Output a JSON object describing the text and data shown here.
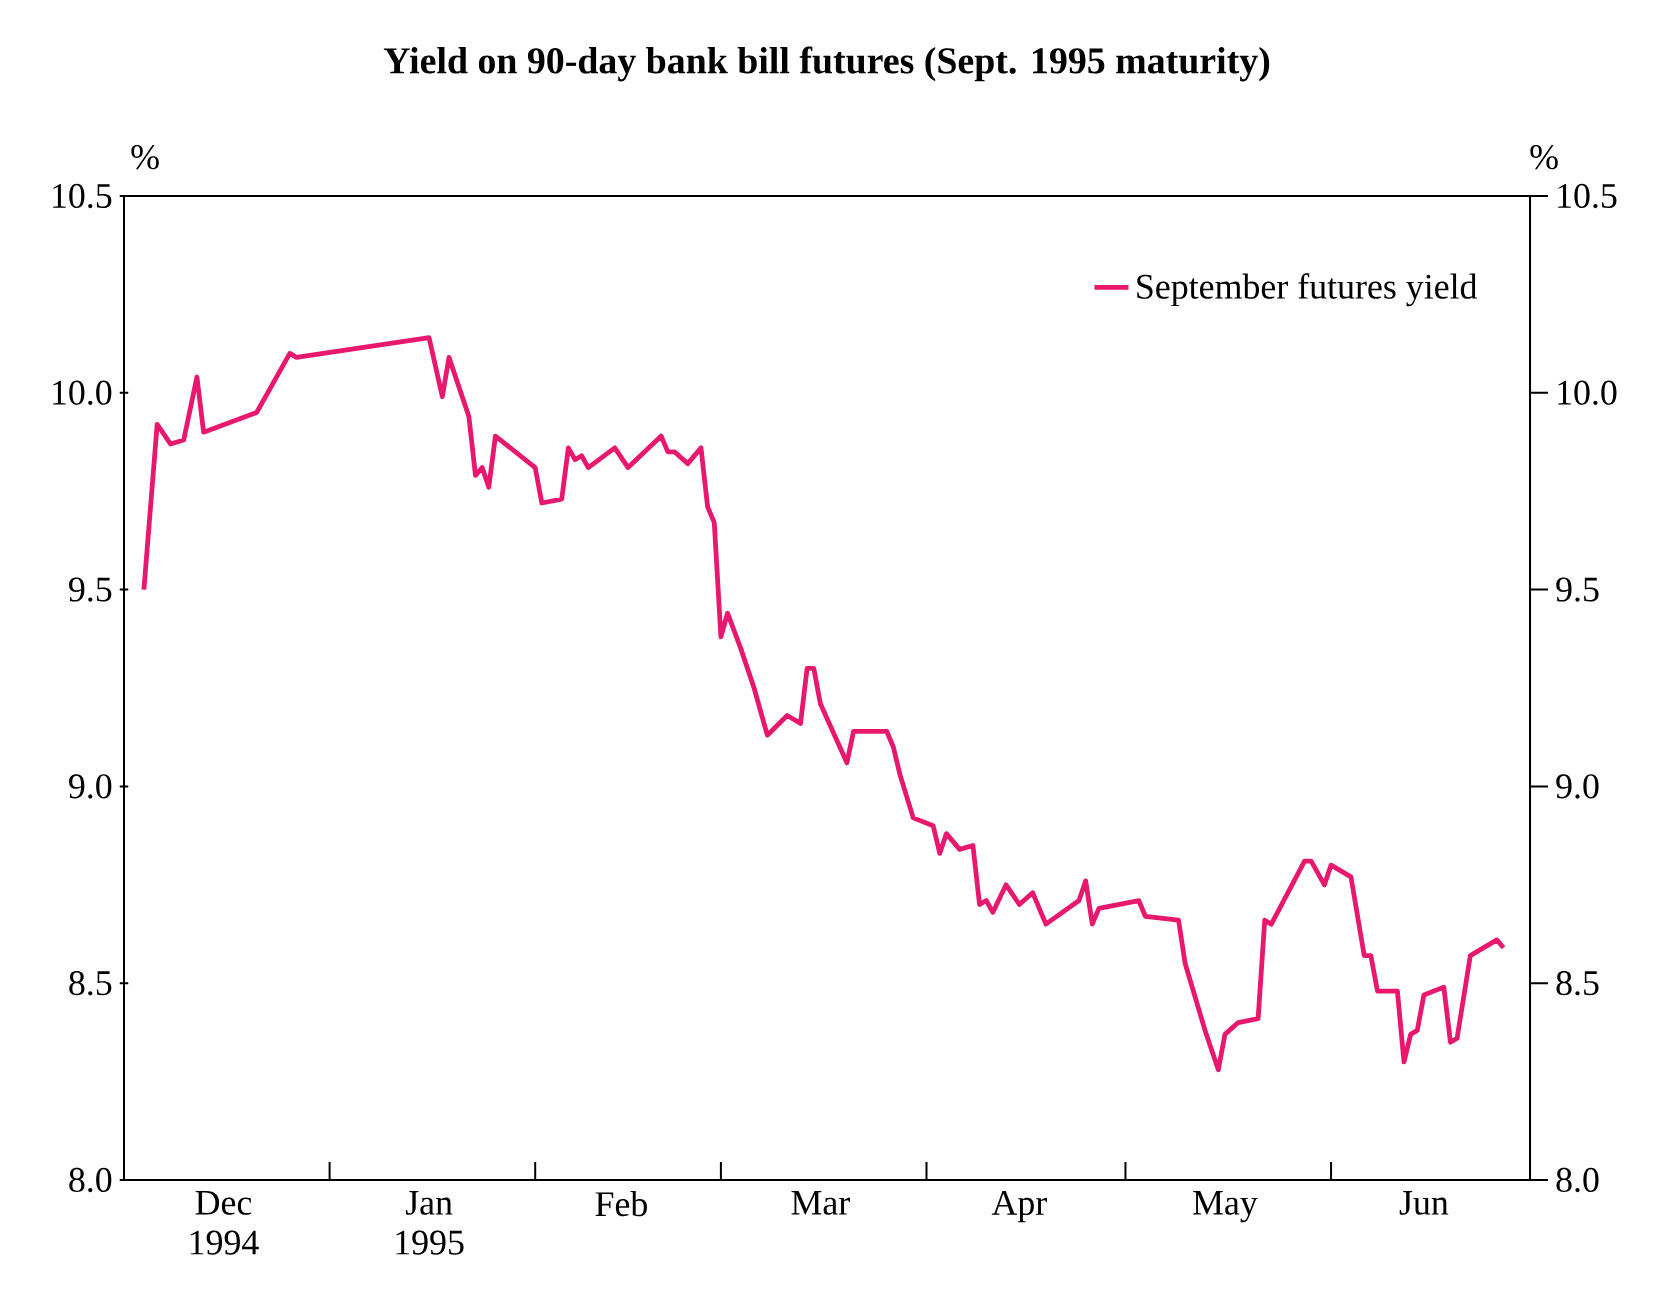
{
  "chart_data": {
    "type": "line",
    "title": "Yield on 90-day bank bill futures (Sept. 1995 maturity)",
    "ylabel": "%",
    "y2label": "%",
    "x": [
      "1994-12-04",
      "1994-12-06",
      "1994-12-08",
      "1994-12-10",
      "1994-12-12",
      "1994-12-13",
      "1994-12-21",
      "1994-12-26",
      "1994-12-27",
      "1995-01-16",
      "1995-01-18",
      "1995-01-19",
      "1995-01-22",
      "1995-01-23",
      "1995-01-24",
      "1995-01-25",
      "1995-01-26",
      "1995-02-01",
      "1995-02-02",
      "1995-02-05",
      "1995-02-06",
      "1995-02-07",
      "1995-02-08",
      "1995-02-09",
      "1995-02-13",
      "1995-02-15",
      "1995-02-20",
      "1995-02-21",
      "1995-02-22",
      "1995-02-24",
      "1995-02-26",
      "1995-02-27",
      "1995-02-28",
      "1995-03-01",
      "1995-03-02",
      "1995-03-04",
      "1995-03-06",
      "1995-03-08",
      "1995-03-11",
      "1995-03-13",
      "1995-03-14",
      "1995-03-15",
      "1995-03-16",
      "1995-03-20",
      "1995-03-21",
      "1995-03-26",
      "1995-03-27",
      "1995-03-28",
      "1995-03-30",
      "1995-04-02",
      "1995-04-03",
      "1995-04-04",
      "1995-04-06",
      "1995-04-08",
      "1995-04-09",
      "1995-04-10",
      "1995-04-11",
      "1995-04-13",
      "1995-04-15",
      "1995-04-17",
      "1995-04-19",
      "1995-04-24",
      "1995-04-25",
      "1995-04-26",
      "1995-04-27",
      "1995-05-03",
      "1995-05-04",
      "1995-05-09",
      "1995-05-10",
      "1995-05-13",
      "1995-05-15",
      "1995-05-16",
      "1995-05-18",
      "1995-05-21",
      "1995-05-22",
      "1995-05-23",
      "1995-05-28",
      "1995-05-29",
      "1995-05-31",
      "1995-06-01",
      "1995-06-04",
      "1995-06-06",
      "1995-06-07",
      "1995-06-08",
      "1995-06-11",
      "1995-06-12",
      "1995-06-13",
      "1995-06-14",
      "1995-06-15",
      "1995-06-18",
      "1995-06-19",
      "1995-06-20",
      "1995-06-22",
      "1995-06-26",
      "1995-06-27"
    ],
    "series": [
      {
        "name": "September futures yield",
        "color": "#e8186f",
        "values": [
          9.5,
          9.92,
          9.87,
          9.88,
          10.04,
          9.9,
          9.95,
          10.1,
          10.09,
          10.14,
          9.99,
          10.09,
          9.94,
          9.79,
          9.81,
          9.76,
          9.89,
          9.81,
          9.72,
          9.73,
          9.86,
          9.83,
          9.84,
          9.81,
          9.86,
          9.81,
          9.89,
          9.85,
          9.85,
          9.82,
          9.86,
          9.71,
          9.67,
          9.38,
          9.44,
          9.35,
          9.25,
          9.13,
          9.18,
          9.16,
          9.3,
          9.3,
          9.21,
          9.06,
          9.14,
          9.14,
          9.1,
          9.03,
          8.92,
          8.9,
          8.83,
          8.88,
          8.84,
          8.85,
          8.7,
          8.71,
          8.68,
          8.75,
          8.7,
          8.73,
          8.65,
          8.71,
          8.76,
          8.65,
          8.69,
          8.71,
          8.67,
          8.66,
          8.55,
          8.38,
          8.28,
          8.37,
          8.4,
          8.41,
          8.66,
          8.65,
          8.81,
          8.81,
          8.75,
          8.8,
          8.77,
          8.57,
          8.57,
          8.48,
          8.48,
          8.3,
          8.37,
          8.38,
          8.47,
          8.49,
          8.35,
          8.36,
          8.57,
          8.61,
          8.59
        ]
      }
    ],
    "xlim": [
      "1994-12-01",
      "1995-07-01"
    ],
    "xticks": [
      {
        "value": "1994-12-01",
        "label": null
      },
      {
        "value": "1994-12-16",
        "label": "Dec 1994"
      },
      {
        "value": "1995-01-01",
        "label": null
      },
      {
        "value": "1995-01-16",
        "label": "Jan 1995"
      },
      {
        "value": "1995-02-01",
        "label": null
      },
      {
        "value": "1995-02-14",
        "label": "Feb"
      },
      {
        "value": "1995-03-01",
        "label": null
      },
      {
        "value": "1995-03-16",
        "label": "Mar"
      },
      {
        "value": "1995-04-01",
        "label": null
      },
      {
        "value": "1995-04-15",
        "label": "Apr"
      },
      {
        "value": "1995-05-01",
        "label": null
      },
      {
        "value": "1995-05-16",
        "label": "May"
      },
      {
        "value": "1995-06-01",
        "label": null
      },
      {
        "value": "1995-06-15",
        "label": "Jun"
      }
    ],
    "ylim": [
      8.0,
      10.5
    ],
    "yticks": [
      {
        "value": 8.0,
        "label": "8.0"
      },
      {
        "value": 8.5,
        "label": "8.5"
      },
      {
        "value": 9.0,
        "label": "9.0"
      },
      {
        "value": 9.5,
        "label": "9.5"
      },
      {
        "value": 10.0,
        "label": "10.0"
      },
      {
        "value": 10.5,
        "label": "10.5"
      }
    ],
    "y2lim": [
      8.0,
      10.5
    ],
    "y2ticks": [
      {
        "value": 8.0,
        "label": "8.0"
      },
      {
        "value": 8.5,
        "label": "8.5"
      },
      {
        "value": 9.0,
        "label": "9.0"
      },
      {
        "value": 9.5,
        "label": "9.5"
      },
      {
        "value": 10.0,
        "label": "10.0"
      },
      {
        "value": 10.5,
        "label": "10.5"
      }
    ],
    "legend": "top right"
  }
}
